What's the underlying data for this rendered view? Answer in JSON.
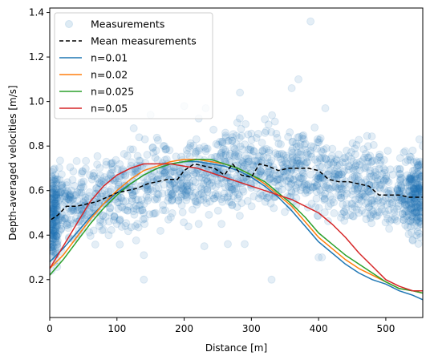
{
  "chart_data": {
    "type": "scatter",
    "title": "",
    "xlabel": "Distance [m]",
    "ylabel": "Depth-averaged velocities [m/s]",
    "xlim": [
      0,
      555
    ],
    "ylim": [
      0.03,
      1.42
    ],
    "xticks": [
      0,
      100,
      200,
      300,
      400,
      500
    ],
    "yticks": [
      0.2,
      0.4,
      0.6,
      0.8,
      1.0,
      1.2,
      1.4
    ],
    "xtick_labels": [
      "0",
      "100",
      "200",
      "300",
      "400",
      "500"
    ],
    "ytick_labels": [
      "0.2",
      "0.4",
      "0.6",
      "0.8",
      "1.0",
      "1.2",
      "1.4"
    ],
    "grid": false,
    "legend_position": "upper-left",
    "scatter": {
      "name": "Measurements",
      "color": "#1f77b4",
      "alpha": 0.12,
      "approx_count": 1800,
      "x_range": [
        0,
        555
      ],
      "trend": [
        [
          0,
          0.46
        ],
        [
          10,
          0.5
        ],
        [
          25,
          0.53
        ],
        [
          50,
          0.54
        ],
        [
          75,
          0.56
        ],
        [
          100,
          0.59
        ],
        [
          125,
          0.61
        ],
        [
          150,
          0.64
        ],
        [
          175,
          0.65
        ],
        [
          200,
          0.66
        ],
        [
          225,
          0.69
        ],
        [
          250,
          0.69
        ],
        [
          275,
          0.7
        ],
        [
          300,
          0.69
        ],
        [
          325,
          0.69
        ],
        [
          350,
          0.7
        ],
        [
          375,
          0.7
        ],
        [
          400,
          0.68
        ],
        [
          425,
          0.64
        ],
        [
          450,
          0.64
        ],
        [
          475,
          0.62
        ],
        [
          500,
          0.59
        ],
        [
          525,
          0.58
        ],
        [
          555,
          0.57
        ]
      ],
      "spread": 0.09,
      "outliers": [
        [
          388,
          1.36
        ],
        [
          360,
          1.06
        ],
        [
          370,
          1.1
        ],
        [
          283,
          1.04
        ],
        [
          232,
          0.97
        ],
        [
          200,
          0.98
        ],
        [
          150,
          0.94
        ],
        [
          125,
          0.88
        ],
        [
          140,
          0.31
        ],
        [
          140,
          0.2
        ],
        [
          330,
          0.2
        ],
        [
          400,
          0.3
        ],
        [
          405,
          0.3
        ],
        [
          265,
          0.36
        ],
        [
          230,
          0.35
        ],
        [
          290,
          0.36
        ],
        [
          555,
          0.8
        ],
        [
          550,
          0.83
        ],
        [
          540,
          0.78
        ],
        [
          410,
          0.97
        ],
        [
          335,
          0.91
        ],
        [
          320,
          0.92
        ]
      ]
    },
    "series": [
      {
        "name": "Mean measurements",
        "color": "#000000",
        "dash": "5,3",
        "x": [
          2,
          12,
          25,
          40,
          55,
          70,
          85,
          100,
          115,
          130,
          145,
          160,
          175,
          190,
          200,
          215,
          230,
          245,
          260,
          272,
          285,
          300,
          312,
          325,
          340,
          355,
          370,
          385,
          400,
          415,
          430,
          445,
          460,
          475,
          490,
          505,
          520,
          535,
          550,
          555
        ],
        "y": [
          0.47,
          0.49,
          0.53,
          0.53,
          0.54,
          0.55,
          0.57,
          0.59,
          0.6,
          0.61,
          0.63,
          0.64,
          0.65,
          0.65,
          0.69,
          0.72,
          0.71,
          0.7,
          0.67,
          0.72,
          0.67,
          0.66,
          0.72,
          0.71,
          0.69,
          0.7,
          0.7,
          0.7,
          0.69,
          0.65,
          0.64,
          0.64,
          0.63,
          0.62,
          0.58,
          0.58,
          0.58,
          0.57,
          0.57,
          0.57
        ]
      },
      {
        "name": "n=0.01",
        "color": "#1f77b4",
        "dash": "",
        "x": [
          0,
          20,
          40,
          60,
          80,
          100,
          120,
          140,
          160,
          180,
          200,
          220,
          240,
          260,
          280,
          300,
          320,
          340,
          360,
          380,
          400,
          420,
          440,
          460,
          480,
          500,
          520,
          540,
          555
        ],
        "y": [
          0.28,
          0.34,
          0.41,
          0.48,
          0.54,
          0.59,
          0.63,
          0.67,
          0.7,
          0.72,
          0.73,
          0.73,
          0.72,
          0.71,
          0.69,
          0.66,
          0.62,
          0.57,
          0.51,
          0.44,
          0.37,
          0.32,
          0.27,
          0.23,
          0.2,
          0.18,
          0.15,
          0.13,
          0.11
        ]
      },
      {
        "name": "n=0.02",
        "color": "#ff7f0e",
        "dash": "",
        "x": [
          0,
          20,
          40,
          60,
          80,
          100,
          120,
          140,
          160,
          180,
          200,
          220,
          240,
          260,
          280,
          300,
          320,
          340,
          360,
          380,
          400,
          420,
          440,
          460,
          480,
          500,
          520,
          540,
          555
        ],
        "y": [
          0.25,
          0.31,
          0.39,
          0.47,
          0.54,
          0.6,
          0.65,
          0.69,
          0.71,
          0.73,
          0.74,
          0.74,
          0.73,
          0.72,
          0.7,
          0.67,
          0.63,
          0.58,
          0.53,
          0.46,
          0.39,
          0.34,
          0.29,
          0.25,
          0.22,
          0.19,
          0.16,
          0.15,
          0.14
        ]
      },
      {
        "name": "n=0.025",
        "color": "#2ca02c",
        "dash": "",
        "x": [
          0,
          20,
          40,
          60,
          80,
          100,
          120,
          140,
          160,
          180,
          200,
          220,
          240,
          260,
          280,
          300,
          320,
          340,
          360,
          380,
          400,
          420,
          440,
          460,
          480,
          500,
          520,
          540,
          555
        ],
        "y": [
          0.22,
          0.29,
          0.37,
          0.45,
          0.52,
          0.58,
          0.63,
          0.67,
          0.7,
          0.72,
          0.73,
          0.74,
          0.74,
          0.72,
          0.7,
          0.67,
          0.64,
          0.59,
          0.54,
          0.48,
          0.41,
          0.36,
          0.31,
          0.27,
          0.23,
          0.19,
          0.16,
          0.15,
          0.14
        ]
      },
      {
        "name": "n=0.05",
        "color": "#d62728",
        "dash": "",
        "x": [
          0,
          20,
          40,
          60,
          80,
          100,
          120,
          140,
          160,
          180,
          200,
          220,
          240,
          260,
          280,
          300,
          320,
          340,
          360,
          380,
          400,
          420,
          440,
          460,
          480,
          500,
          520,
          540,
          555
        ],
        "y": [
          0.25,
          0.35,
          0.45,
          0.55,
          0.62,
          0.67,
          0.7,
          0.72,
          0.72,
          0.72,
          0.71,
          0.7,
          0.68,
          0.66,
          0.64,
          0.62,
          0.6,
          0.58,
          0.56,
          0.53,
          0.5,
          0.45,
          0.39,
          0.32,
          0.26,
          0.2,
          0.17,
          0.15,
          0.15
        ]
      }
    ]
  }
}
